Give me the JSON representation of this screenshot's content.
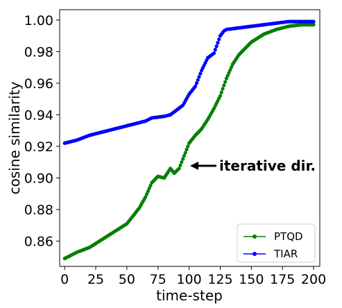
{
  "chart_data": {
    "type": "scatter",
    "xlabel": "time-step",
    "ylabel": "cosine similarity",
    "xlim": [
      -4,
      205
    ],
    "ylim": [
      0.844,
      1.0065
    ],
    "xticks": [
      0,
      25,
      50,
      75,
      100,
      125,
      150,
      175,
      200
    ],
    "yticks": [
      0.86,
      0.88,
      0.9,
      0.92,
      0.94,
      0.96,
      0.98,
      1.0
    ],
    "ytick_labels": [
      "0.86",
      "0.88",
      "0.90",
      "0.92",
      "0.94",
      "0.96",
      "0.98",
      "1.00"
    ],
    "grid": false,
    "legend_position": "lower-right",
    "series": [
      {
        "name": "PTQD",
        "color": "#008000",
        "knots_x": [
          0,
          10,
          20,
          30,
          40,
          50,
          60,
          65,
          70,
          75,
          80,
          85,
          88,
          92,
          96,
          100,
          105,
          110,
          115,
          120,
          125,
          130,
          135,
          140,
          145,
          150,
          160,
          170,
          180,
          190,
          200
        ],
        "knots_y": [
          0.849,
          0.853,
          0.856,
          0.861,
          0.866,
          0.871,
          0.881,
          0.888,
          0.897,
          0.901,
          0.9,
          0.906,
          0.903,
          0.906,
          0.914,
          0.922,
          0.927,
          0.931,
          0.937,
          0.944,
          0.952,
          0.963,
          0.972,
          0.978,
          0.982,
          0.986,
          0.991,
          0.994,
          0.996,
          0.997,
          0.997
        ]
      },
      {
        "name": "TIAR",
        "color": "#0000ff",
        "knots_x": [
          0,
          10,
          20,
          30,
          40,
          50,
          60,
          65,
          70,
          80,
          85,
          90,
          95,
          100,
          105,
          110,
          115,
          120,
          125,
          128,
          130,
          140,
          150,
          160,
          170,
          180,
          190,
          200
        ],
        "knots_y": [
          0.922,
          0.924,
          0.927,
          0.929,
          0.931,
          0.933,
          0.935,
          0.936,
          0.938,
          0.939,
          0.94,
          0.943,
          0.946,
          0.953,
          0.958,
          0.968,
          0.976,
          0.979,
          0.99,
          0.993,
          0.994,
          0.995,
          0.996,
          0.997,
          0.998,
          0.999,
          0.999,
          0.999
        ]
      }
    ],
    "annotations": [
      {
        "text": "iterative dir.",
        "arrow_to": [
          97,
          0.908
        ]
      }
    ]
  }
}
